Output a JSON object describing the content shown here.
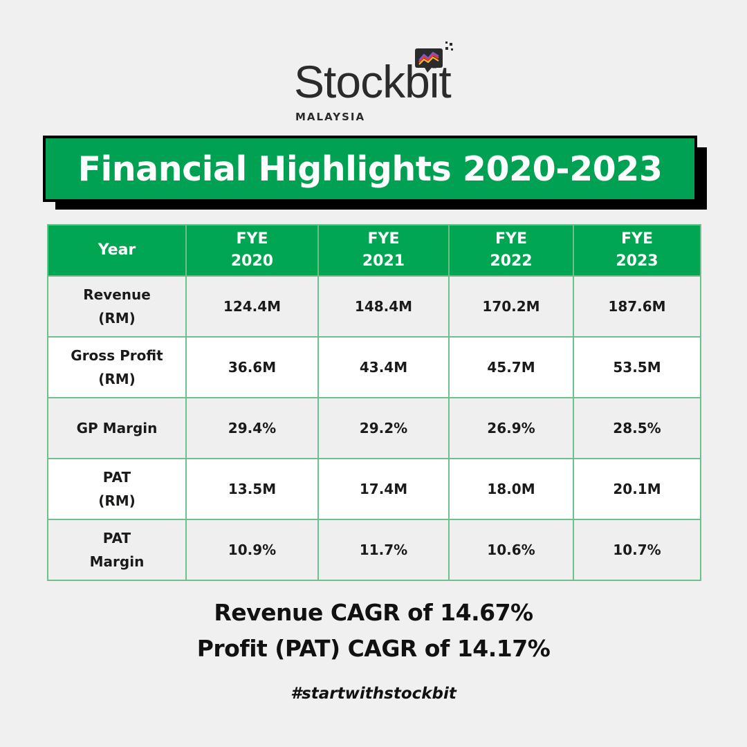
{
  "logo": {
    "wordmark": "Stockbit",
    "subtitle": "MALAYSIA",
    "brand_color": "#00a152",
    "icon": "stockbit-chart-bubble-icon"
  },
  "banner": {
    "title": "Financial Highlights 2020-2023"
  },
  "table": {
    "header": {
      "label": "Year",
      "years": [
        {
          "line1": "FYE",
          "line2": "2020"
        },
        {
          "line1": "FYE",
          "line2": "2021"
        },
        {
          "line1": "FYE",
          "line2": "2022"
        },
        {
          "line1": "FYE",
          "line2": "2023"
        }
      ]
    },
    "rows": [
      {
        "label1": "Revenue",
        "label2": "(RM)",
        "values": [
          "124.4M",
          "148.4M",
          "170.2M",
          "187.6M"
        ]
      },
      {
        "label1": "Gross Profit",
        "label2": "(RM)",
        "values": [
          "36.6M",
          "43.4M",
          "45.7M",
          "53.5M"
        ]
      },
      {
        "label1": "GP Margin",
        "label2": "",
        "values": [
          "29.4%",
          "29.2%",
          "26.9%",
          "28.5%"
        ]
      },
      {
        "label1": "PAT",
        "label2": "(RM)",
        "values": [
          "13.5M",
          "17.4M",
          "18.0M",
          "20.1M"
        ]
      },
      {
        "label1": "PAT",
        "label2": "Margin",
        "values": [
          "10.9%",
          "11.7%",
          "10.6%",
          "10.7%"
        ]
      }
    ]
  },
  "summary": {
    "line1": "Revenue CAGR of 14.67%",
    "line2": "Profit (PAT) CAGR of 14.17%"
  },
  "hashtag": "#startwithstockbit"
}
